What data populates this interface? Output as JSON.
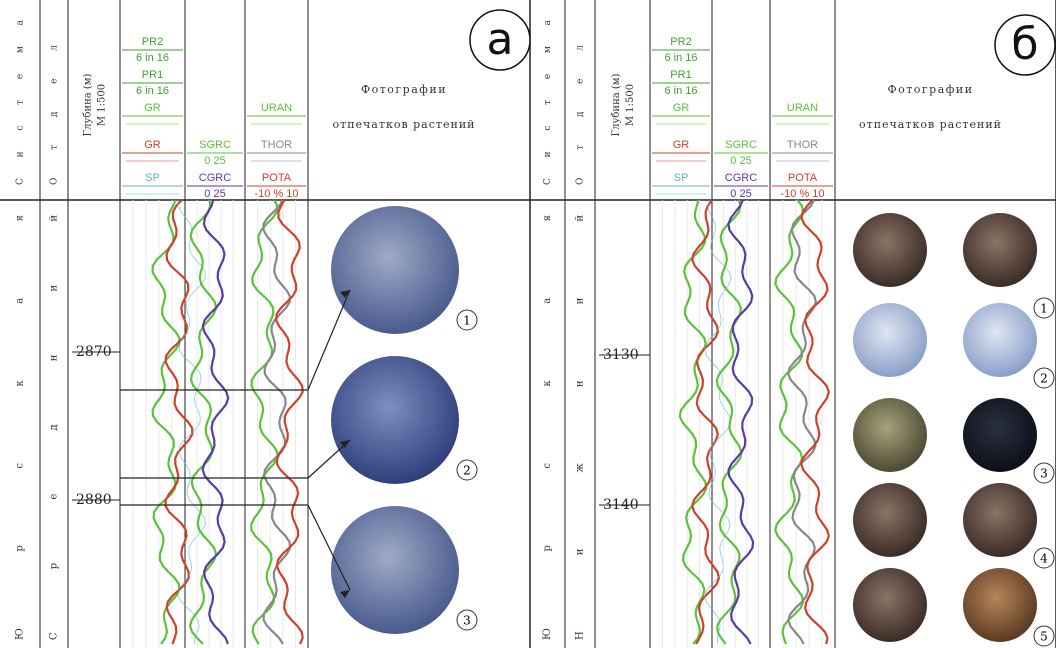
{
  "panels": [
    {
      "label": "а",
      "header": {
        "system": "Система",
        "division": "Отдел",
        "depth": "Глубина (м)",
        "scale": "М 1:500",
        "photos": [
          "Фотографии",
          "отпечатков растений"
        ]
      },
      "tracks": [
        [
          {
            "name": "PR2",
            "color": "#3aa52a",
            "scale": "6 in 16"
          },
          {
            "name": "PR1",
            "color": "#3aa52a",
            "scale": "6 in 16"
          },
          {
            "name": "GR",
            "color": "#5cc23a"
          },
          {
            "name": "GR",
            "color": "#d0402a"
          },
          {
            "name": "SP",
            "color": "#5ab4d8"
          }
        ],
        [
          {
            "name": "SGRC",
            "color": "#5cc23a",
            "scale": "0 25"
          },
          {
            "name": "CGRC",
            "color": "#5a3aa8",
            "scale": "0 25"
          }
        ],
        [
          {
            "name": "URAN",
            "color": "#5cc23a"
          },
          {
            "name": "THOR",
            "color": "#888888"
          },
          {
            "name": "POTA",
            "color": "#d0402a",
            "scale": "-10 % 10"
          }
        ]
      ],
      "body": {
        "system": "Юрская",
        "division": "Средний"
      },
      "depths": [
        "2870",
        "2880"
      ],
      "photo_numbers": [
        "1",
        "2",
        "3"
      ]
    },
    {
      "label": "б",
      "header": {
        "system": "Система",
        "division": "Отдел",
        "depth": "Глубина (м)",
        "scale": "М 1:500",
        "photos": [
          "Фотографии",
          "отпечатков растений"
        ]
      },
      "tracks": [
        [
          {
            "name": "PR2",
            "color": "#3aa52a",
            "scale": "6 in 16"
          },
          {
            "name": "PR1",
            "color": "#3aa52a",
            "scale": "6 in 16"
          },
          {
            "name": "GR",
            "color": "#5cc23a"
          },
          {
            "name": "GR",
            "color": "#d0402a"
          },
          {
            "name": "SP",
            "color": "#5ab4d8"
          }
        ],
        [
          {
            "name": "SGRC",
            "color": "#5cc23a",
            "scale": "0 25"
          },
          {
            "name": "CGRC",
            "color": "#5a3aa8",
            "scale": "0 25"
          }
        ],
        [
          {
            "name": "URAN",
            "color": "#5cc23a"
          },
          {
            "name": "THOR",
            "color": "#888888"
          },
          {
            "name": "POTA",
            "color": "#d0402a",
            "scale": "-10 % 10"
          }
        ]
      ],
      "body": {
        "system": "Юрская",
        "division": "Нижний"
      },
      "depths": [
        "3130",
        "3140"
      ],
      "photo_numbers": [
        "1",
        "2",
        "3",
        "4",
        "5"
      ]
    }
  ]
}
